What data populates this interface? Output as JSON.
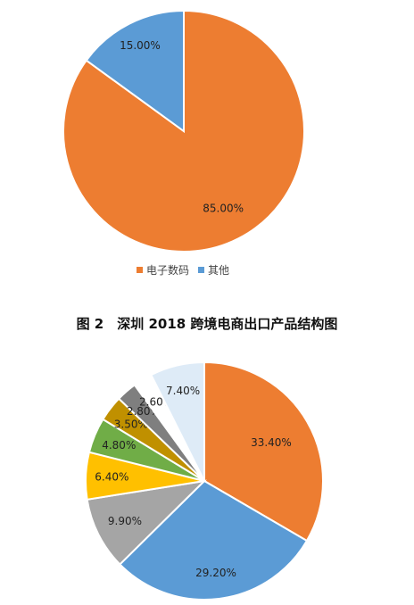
{
  "chart_data": [
    {
      "type": "pie",
      "categories": [
        "电子数码",
        "其他"
      ],
      "values": [
        85.0,
        15.0
      ],
      "data_labels": [
        "85.00%",
        "15.00%"
      ],
      "colors": [
        "#ED7D31",
        "#5B9BD5"
      ],
      "legend": [
        "电子数码",
        "其他"
      ],
      "legend_position": "bottom"
    },
    {
      "type": "pie",
      "values": [
        33.4,
        29.2,
        9.9,
        6.4,
        4.8,
        3.5,
        2.8,
        2.6,
        7.4
      ],
      "data_labels": [
        "33.40%",
        "29.20%",
        "9.90%",
        "6.40%",
        "4.80%",
        "3.50%",
        "2.80%",
        "2.60%",
        "7.40%"
      ],
      "colors": [
        "#ED7D31",
        "#5B9BD5",
        "#A5A5A5",
        "#FFC000",
        "#70AD47",
        "#C09000",
        "#7F7F7F",
        "#FFFFFF",
        "#DEEBF7"
      ],
      "title": "图 2　深圳 2018 跨境电商出口产品结构图"
    }
  ]
}
